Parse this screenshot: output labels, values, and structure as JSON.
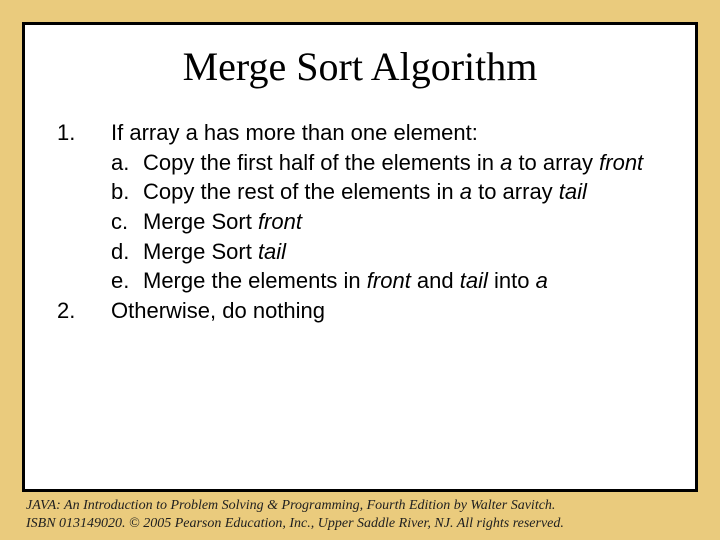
{
  "colors": {
    "slide_background": "#eacb7d",
    "content_background": "#ffffff",
    "border_color": "#000000",
    "text_color": "#000000",
    "footer_color": "#202020"
  },
  "typography": {
    "title_font": "Times New Roman",
    "title_size_pt": 30,
    "body_font": "Arial",
    "body_size_pt": 17,
    "footer_font": "Times New Roman",
    "footer_size_pt": 10
  },
  "title": "Merge Sort Algorithm",
  "steps": [
    {
      "marker": "1.",
      "text": "If array a has more than one element:",
      "subitems": [
        {
          "marker": "a.",
          "parts": [
            {
              "t": "Copy the first half of the elements in "
            },
            {
              "t": "a",
              "i": true
            },
            {
              "t": " to array "
            },
            {
              "t": "front",
              "i": true
            }
          ]
        },
        {
          "marker": "b.",
          "parts": [
            {
              "t": "Copy the rest of the elements in "
            },
            {
              "t": "a",
              "i": true
            },
            {
              "t": " to array "
            },
            {
              "t": "tail",
              "i": true
            }
          ]
        },
        {
          "marker": "c.",
          "parts": [
            {
              "t": "Merge Sort "
            },
            {
              "t": "front",
              "i": true
            }
          ]
        },
        {
          "marker": "d.",
          "parts": [
            {
              "t": "Merge Sort "
            },
            {
              "t": "tail",
              "i": true
            }
          ]
        },
        {
          "marker": "e.",
          "parts": [
            {
              "t": "Merge the elements in "
            },
            {
              "t": "front",
              "i": true
            },
            {
              "t": " and "
            },
            {
              "t": "tail",
              "i": true
            },
            {
              "t": " into "
            },
            {
              "t": "a",
              "i": true
            }
          ]
        }
      ]
    },
    {
      "marker": "2.",
      "text": "Otherwise, do nothing",
      "subitems": []
    }
  ],
  "footer": {
    "line1_parts": [
      {
        "t": "JAVA: An Introduction to Problem Solving & Programming",
        "i": true
      },
      {
        "t": ", Fourth Edition by Walter Savitch."
      }
    ],
    "line2": "ISBN 013149020. © 2005 Pearson Education, Inc., Upper Saddle River, NJ. All rights reserved."
  }
}
